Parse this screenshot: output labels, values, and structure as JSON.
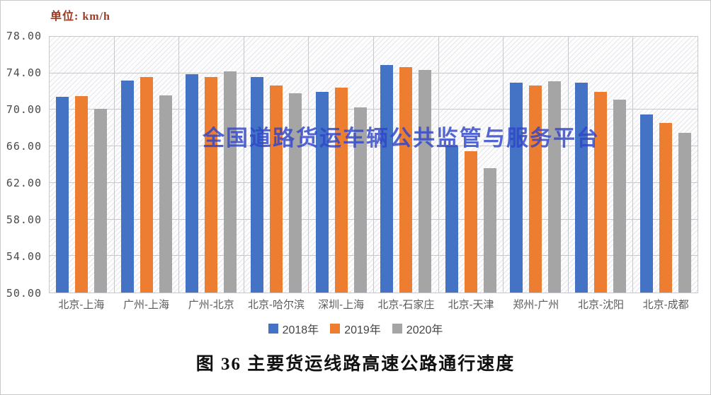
{
  "unit_label": "单位: km/h",
  "watermark": {
    "text": "全国道路货运车辆公共监管与服务平台",
    "color": "#2F46C9"
  },
  "caption": {
    "text": "图 36 主要货运线路高速公路通行速度"
  },
  "chart_data": {
    "type": "bar",
    "title": "图 36 主要货运线路高速公路通行速度",
    "unit": "km/h",
    "xlabel": "",
    "ylabel": "单位: km/h",
    "ylim": [
      50,
      78
    ],
    "ytick_step": 4,
    "ytick_decimals": 2,
    "grid": "horizontal gridlines + vertical category separators, hatched plot background",
    "legend_position": "bottom",
    "categories": [
      "北京-上海",
      "广州-上海",
      "广州-北京",
      "北京-哈尔滨",
      "深圳-上海",
      "北京-石家庄",
      "北京-天津",
      "郑州-广州",
      "北京-沈阳",
      "北京-成都"
    ],
    "series": [
      {
        "name": "2018年",
        "color": "#4472C4",
        "values": [
          71.4,
          73.2,
          73.9,
          73.6,
          72.0,
          74.9,
          66.0,
          73.0,
          73.0,
          69.5
        ]
      },
      {
        "name": "2019年",
        "color": "#ED7D31",
        "values": [
          71.5,
          73.6,
          73.6,
          72.7,
          72.4,
          74.7,
          65.5,
          72.7,
          72.0,
          68.6
        ]
      },
      {
        "name": "2020年",
        "color": "#A5A5A5",
        "values": [
          70.1,
          71.6,
          74.2,
          71.8,
          70.3,
          74.4,
          63.6,
          73.1,
          71.1,
          67.5
        ]
      }
    ]
  }
}
